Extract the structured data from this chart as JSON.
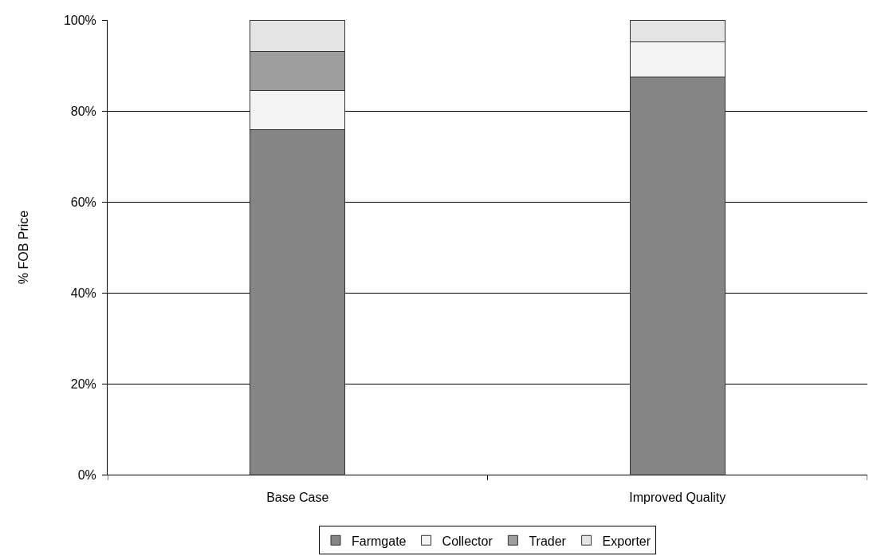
{
  "chart_data": {
    "type": "bar",
    "stacked": true,
    "ylabel": "% FOB Price",
    "categories": [
      "Base Case",
      "Improved Quality"
    ],
    "series": [
      {
        "name": "Farmgate",
        "color": "#858585",
        "values": [
          75.9,
          87.5
        ]
      },
      {
        "name": "Collector",
        "color": "#f4f4f4",
        "values": [
          8.5,
          7.7
        ]
      },
      {
        "name": "Trader",
        "color": "#9e9e9e",
        "values": [
          8.7,
          0
        ]
      },
      {
        "name": "Exporter",
        "color": "#e4e4e4",
        "values": [
          6.9,
          4.8
        ]
      }
    ],
    "ylim": [
      0,
      100
    ],
    "yticks": [
      {
        "value": 0,
        "label": "0%"
      },
      {
        "value": 20,
        "label": "20%"
      },
      {
        "value": 40,
        "label": "40%"
      },
      {
        "value": 60,
        "label": "60%"
      },
      {
        "value": 80,
        "label": "80%"
      },
      {
        "value": 100,
        "label": "100%"
      }
    ],
    "grid": "y",
    "legend": "bottom"
  }
}
